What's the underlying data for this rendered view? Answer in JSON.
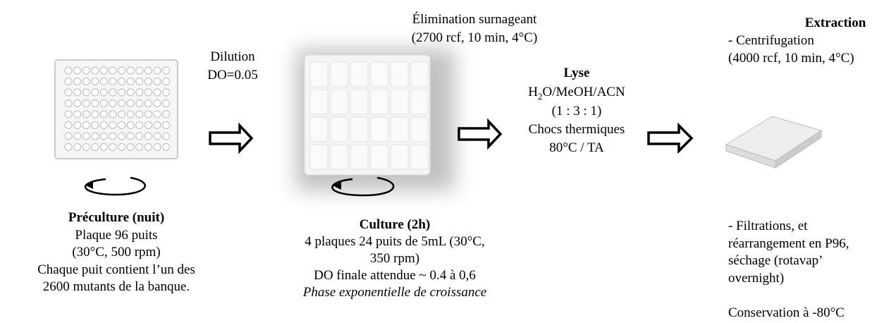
{
  "preculture": {
    "title": "Préculture (nuit)",
    "lines": [
      "Plaque 96 puits",
      "(30°C, 500 rpm)",
      "Chaque puit contient l’un des",
      "2600 mutants de la banque."
    ]
  },
  "dilution": {
    "lines": [
      "Dilution",
      "DO=0.05"
    ]
  },
  "culture": {
    "top": [
      "Élimination surnageant",
      "(2700 rcf, 10 min, 4°C)"
    ],
    "title": "Culture (2h)",
    "lines": [
      "4 plaques 24 puits de 5mL (30°C,",
      "350 rpm)",
      "DO finale attendue ~ 0.4 à 0,6"
    ],
    "note": "Phase exponentielle de croissance"
  },
  "lyse": {
    "title": "Lyse",
    "formula": [
      "H",
      "2",
      "O/MeOH/ACN"
    ],
    "lines": [
      "(1 : 3 : 1)",
      "Chocs thermiques",
      "80°C / TA"
    ]
  },
  "extraction": {
    "title": "Extraction",
    "lines": [
      "- Centrifugation",
      "(4000 rcf, 10 min, 4°C)"
    ],
    "lines2": [
      "- Filtrations, et",
      "réarrangement en P96,",
      "séchage (rotavap’",
      "overnight)"
    ],
    "conservation": "Conservation à -80°C"
  }
}
